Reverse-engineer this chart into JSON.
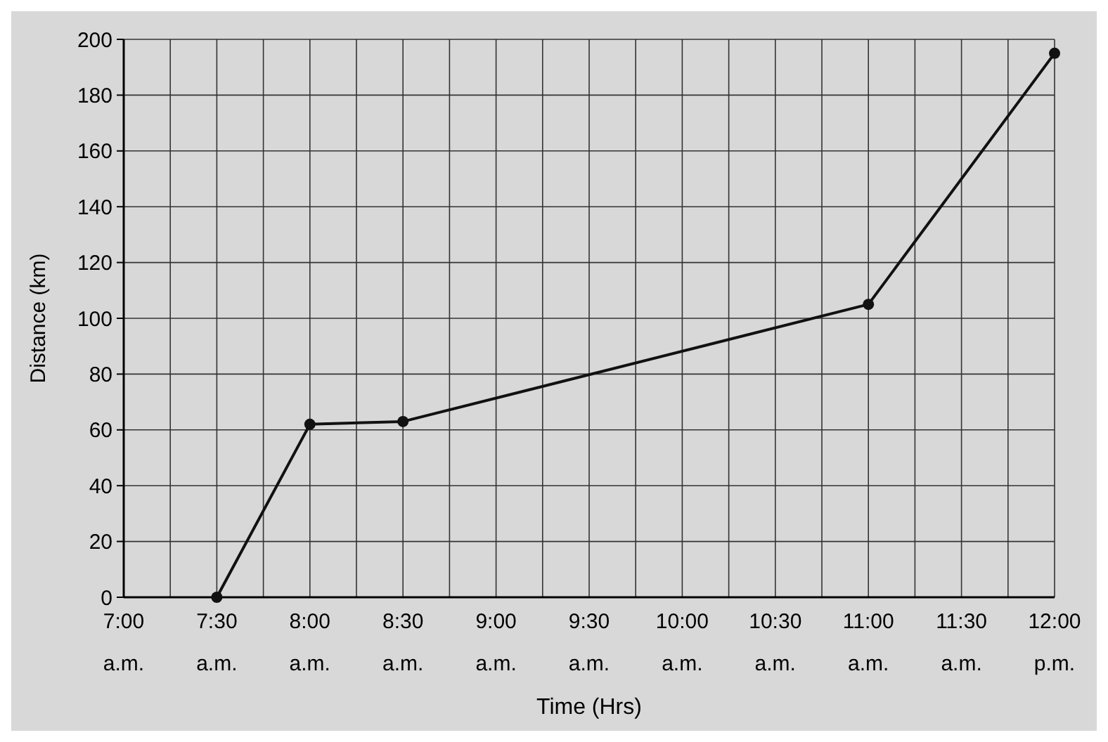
{
  "chart_data": {
    "type": "line",
    "xlabel": "Time (Hrs)",
    "ylabel": "Distance (km)",
    "x": [
      7.5,
      8,
      8.5,
      11,
      12
    ],
    "series": [
      {
        "color": "#111111",
        "values": [
          0,
          62,
          63,
          105,
          195
        ]
      }
    ],
    "xlim": [
      7,
      12
    ],
    "ylim": [
      0,
      200
    ],
    "xticks": [
      {
        "value": 7,
        "label": "7:00\na.m."
      },
      {
        "value": 7.25,
        "label": null
      },
      {
        "value": 7.5,
        "label": "7:30\na.m."
      },
      {
        "value": 7.75,
        "label": null
      },
      {
        "value": 8,
        "label": "8:00\na.m."
      },
      {
        "value": 8.25,
        "label": null
      },
      {
        "value": 8.5,
        "label": "8:30\na.m."
      },
      {
        "value": 8.75,
        "label": null
      },
      {
        "value": 9,
        "label": "9:00\na.m."
      },
      {
        "value": 9.25,
        "label": null
      },
      {
        "value": 9.5,
        "label": "9:30\na.m."
      },
      {
        "value": 9.75,
        "label": null
      },
      {
        "value": 10,
        "label": "10:00\na.m."
      },
      {
        "value": 10.25,
        "label": null
      },
      {
        "value": 10.5,
        "label": "10:30\na.m."
      },
      {
        "value": 10.75,
        "label": null
      },
      {
        "value": 11,
        "label": "11:00\na.m."
      },
      {
        "value": 11.25,
        "label": null
      },
      {
        "value": 11.5,
        "label": "11:30\na.m."
      },
      {
        "value": 11.75,
        "label": null
      },
      {
        "value": 12,
        "label": "12:00\np.m."
      }
    ],
    "yticks": [
      0,
      20,
      40,
      60,
      80,
      100,
      120,
      140,
      160,
      180,
      200
    ],
    "grid": true,
    "marker": "circle",
    "line_style": "solid"
  }
}
